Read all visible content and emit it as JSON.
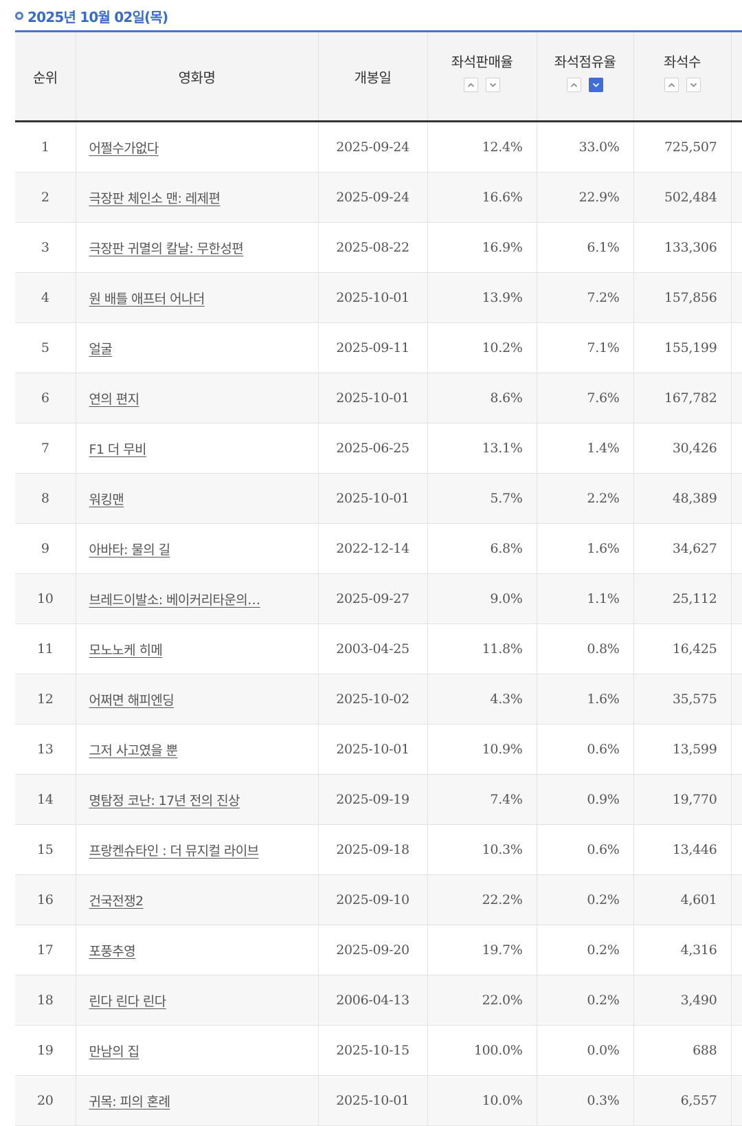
{
  "date_label": "2025년 10월 02일(목)",
  "columns": {
    "rank": "순위",
    "title": "영화명",
    "open_date": "개봉일",
    "sales_rate": "좌석판매율",
    "occupancy_rate": "좌석점유율",
    "seats": "좌석수"
  },
  "sort_state": {
    "sales_rate": "none",
    "occupancy_rate": "desc",
    "seats": "none"
  },
  "colors": {
    "accent": "#3b6cc4",
    "active_sort": "#3f6fd6"
  },
  "rows": [
    {
      "rank": "1",
      "title": "어쩔수가없다",
      "open_date": "2025-09-24",
      "sales_rate": "12.4%",
      "occupancy_rate": "33.0%",
      "seats": "725,507"
    },
    {
      "rank": "2",
      "title": "극장판 체인소 맨: 레제편",
      "open_date": "2025-09-24",
      "sales_rate": "16.6%",
      "occupancy_rate": "22.9%",
      "seats": "502,484"
    },
    {
      "rank": "3",
      "title": "극장판 귀멸의 칼날: 무한성편",
      "open_date": "2025-08-22",
      "sales_rate": "16.9%",
      "occupancy_rate": "6.1%",
      "seats": "133,306"
    },
    {
      "rank": "4",
      "title": "원 배틀 애프터 어나더",
      "open_date": "2025-10-01",
      "sales_rate": "13.9%",
      "occupancy_rate": "7.2%",
      "seats": "157,856"
    },
    {
      "rank": "5",
      "title": "얼굴",
      "open_date": "2025-09-11",
      "sales_rate": "10.2%",
      "occupancy_rate": "7.1%",
      "seats": "155,199"
    },
    {
      "rank": "6",
      "title": "연의 편지",
      "open_date": "2025-10-01",
      "sales_rate": "8.6%",
      "occupancy_rate": "7.6%",
      "seats": "167,782"
    },
    {
      "rank": "7",
      "title": "F1 더 무비",
      "open_date": "2025-06-25",
      "sales_rate": "13.1%",
      "occupancy_rate": "1.4%",
      "seats": "30,426"
    },
    {
      "rank": "8",
      "title": "워킹맨",
      "open_date": "2025-10-01",
      "sales_rate": "5.7%",
      "occupancy_rate": "2.2%",
      "seats": "48,389"
    },
    {
      "rank": "9",
      "title": "아바타: 물의 길",
      "open_date": "2022-12-14",
      "sales_rate": "6.8%",
      "occupancy_rate": "1.6%",
      "seats": "34,627"
    },
    {
      "rank": "10",
      "title": "브레드이발소: 베이커리타운의…",
      "open_date": "2025-09-27",
      "sales_rate": "9.0%",
      "occupancy_rate": "1.1%",
      "seats": "25,112"
    },
    {
      "rank": "11",
      "title": "모노노케 히메",
      "open_date": "2003-04-25",
      "sales_rate": "11.8%",
      "occupancy_rate": "0.8%",
      "seats": "16,425"
    },
    {
      "rank": "12",
      "title": "어쩌면 해피엔딩",
      "open_date": "2025-10-02",
      "sales_rate": "4.3%",
      "occupancy_rate": "1.6%",
      "seats": "35,575"
    },
    {
      "rank": "13",
      "title": "그저 사고였을 뿐",
      "open_date": "2025-10-01",
      "sales_rate": "10.9%",
      "occupancy_rate": "0.6%",
      "seats": "13,599"
    },
    {
      "rank": "14",
      "title": "명탐정 코난: 17년 전의 진상",
      "open_date": "2025-09-19",
      "sales_rate": "7.4%",
      "occupancy_rate": "0.9%",
      "seats": "19,770"
    },
    {
      "rank": "15",
      "title": "프랑켄슈타인 : 더 뮤지컬 라이브",
      "open_date": "2025-09-18",
      "sales_rate": "10.3%",
      "occupancy_rate": "0.6%",
      "seats": "13,446"
    },
    {
      "rank": "16",
      "title": "건국전쟁2",
      "open_date": "2025-09-10",
      "sales_rate": "22.2%",
      "occupancy_rate": "0.2%",
      "seats": "4,601"
    },
    {
      "rank": "17",
      "title": "포풍추영",
      "open_date": "2025-09-20",
      "sales_rate": "19.7%",
      "occupancy_rate": "0.2%",
      "seats": "4,316"
    },
    {
      "rank": "18",
      "title": "린다 린다 린다",
      "open_date": "2006-04-13",
      "sales_rate": "22.0%",
      "occupancy_rate": "0.2%",
      "seats": "3,490"
    },
    {
      "rank": "19",
      "title": "만남의 집",
      "open_date": "2025-10-15",
      "sales_rate": "100.0%",
      "occupancy_rate": "0.0%",
      "seats": "688"
    },
    {
      "rank": "20",
      "title": "귀목: 피의 혼례",
      "open_date": "2025-10-01",
      "sales_rate": "10.0%",
      "occupancy_rate": "0.3%",
      "seats": "6,557"
    }
  ]
}
